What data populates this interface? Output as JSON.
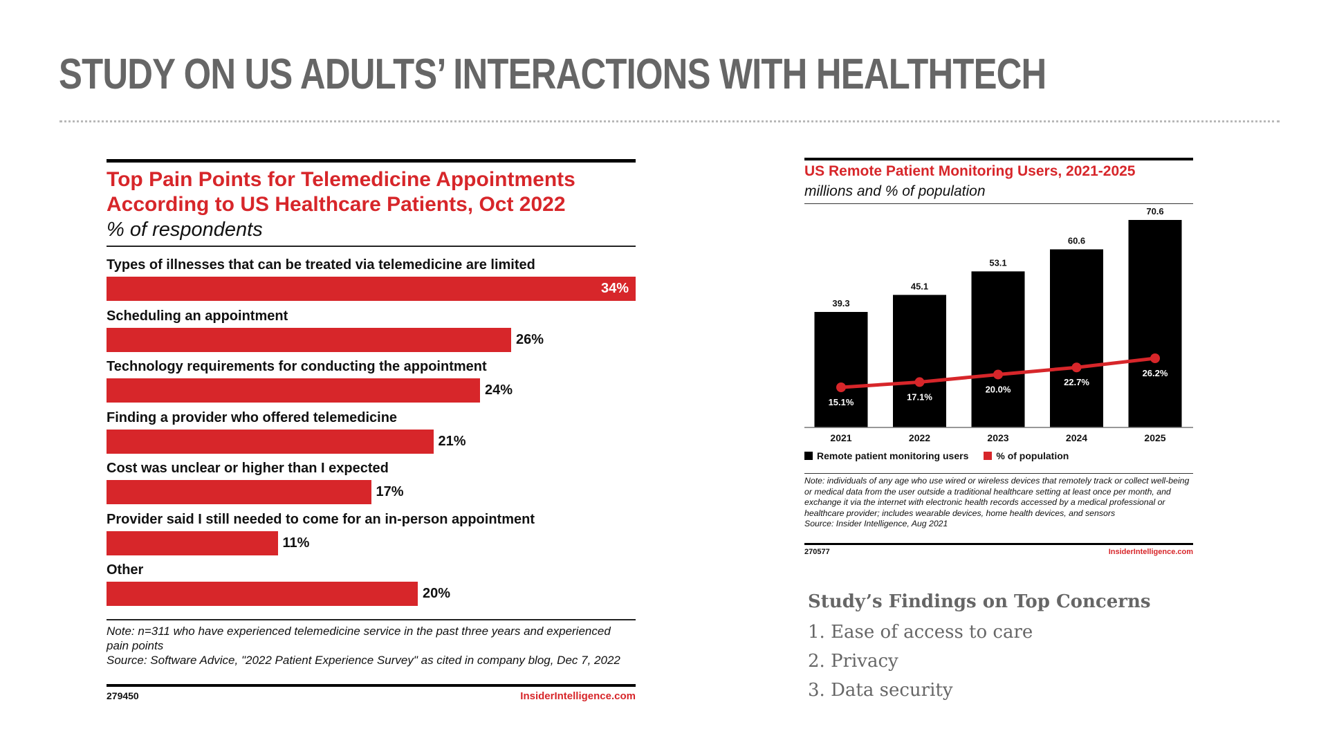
{
  "slide": {
    "title": "STUDY ON US ADULTS’ INTERACTIONS WITH HEALTHTECH"
  },
  "colors": {
    "accent": "#d7262a",
    "bar_dark": "#000000",
    "title_gray": "#666666"
  },
  "left_chart": {
    "title": "Top Pain Points for Telemedicine Appointments According to US Healthcare Patients, Oct 2022",
    "subtitle": "% of respondents",
    "note": "Note: n=311 who have experienced telemedicine service in the past three years and experienced pain points\nSource: Software Advice, \"2022 Patient Experience Survey\" as cited in company blog, Dec 7, 2022",
    "chart_id": "279450",
    "brand": "InsiderIntelligence.com"
  },
  "right_chart": {
    "title": "US Remote Patient Monitoring Users, 2021-2025",
    "subtitle": "millions and % of population",
    "legend_users": "Remote patient monitoring users",
    "legend_pop": "% of population",
    "note": "Note: individuals of any age who use wired or wireless devices that remotely track or collect well-being or medical data from the user outside a traditional healthcare setting at least once per month, and exchange it via the internet with electronic health records accessed by a medical professional or healthcare provider; includes wearable devices, home health devices, and sensors\nSource: Insider Intelligence, Aug 2021",
    "chart_id": "270577",
    "brand": "InsiderIntelligence.com"
  },
  "findings": {
    "heading": "Study’s Findings on Top Concerns",
    "items": [
      "1. Ease of access to care",
      "2. Privacy",
      "3. Data security"
    ]
  },
  "chart_data": [
    {
      "type": "bar",
      "orientation": "horizontal",
      "title": "Top Pain Points for Telemedicine Appointments According to US Healthcare Patients, Oct 2022",
      "ylabel": "% of respondents",
      "categories": [
        "Types of illnesses that can be treated via telemedicine are limited",
        "Scheduling an appointment",
        "Technology requirements for conducting the appointment",
        "Finding a provider who offered telemedicine",
        "Cost was unclear or higher than I expected",
        "Provider said I still needed to come for an in-person appointment",
        "Other"
      ],
      "values": [
        34,
        26,
        24,
        21,
        17,
        11,
        20
      ],
      "value_labels": [
        "34%",
        "26%",
        "24%",
        "21%",
        "17%",
        "11%",
        "20%"
      ],
      "xlim": [
        0,
        34
      ]
    },
    {
      "type": "bar",
      "title": "US Remote Patient Monitoring Users, 2021-2025",
      "subtitle": "millions and % of population",
      "categories": [
        "2021",
        "2022",
        "2023",
        "2024",
        "2025"
      ],
      "series": [
        {
          "name": "Remote patient monitoring users",
          "type": "bar",
          "values": [
            39.3,
            45.1,
            53.1,
            60.6,
            70.6
          ],
          "labels": [
            "39.3",
            "45.1",
            "53.1",
            "60.6",
            "70.6"
          ]
        },
        {
          "name": "% of population",
          "type": "line",
          "values": [
            15.1,
            17.1,
            20.0,
            22.7,
            26.2
          ],
          "labels": [
            "15.1%",
            "17.1%",
            "20.0%",
            "22.7%",
            "26.2%"
          ]
        }
      ],
      "ylim": [
        0,
        70.6
      ]
    }
  ]
}
